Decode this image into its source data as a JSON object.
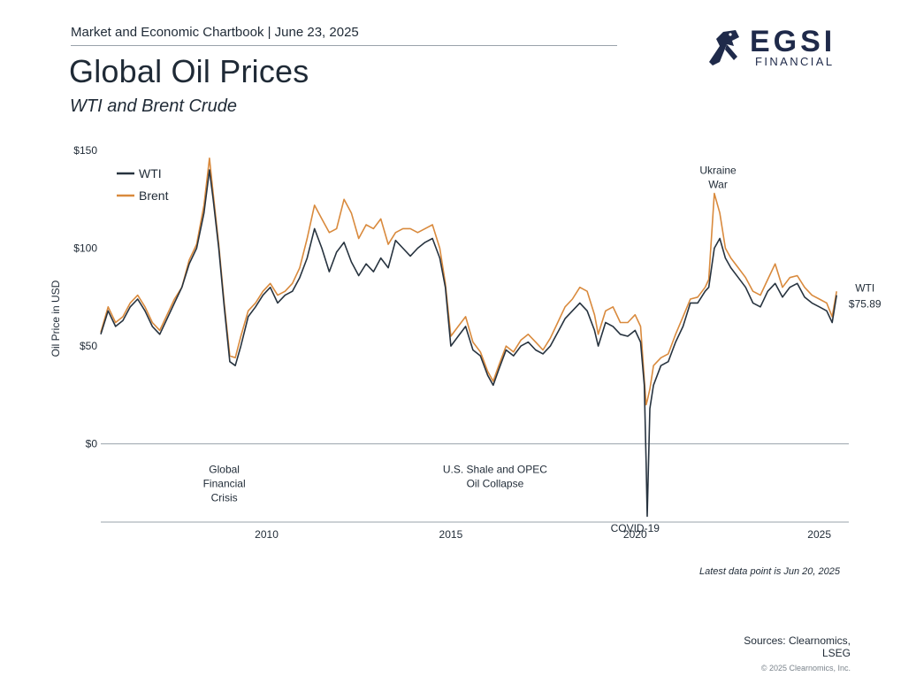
{
  "header": {
    "top_line": "Market and Economic Chartbook | June 23, 2025",
    "title": "Global Oil Prices",
    "subtitle": "WTI and Brent Crude"
  },
  "logo": {
    "main": "EGSI",
    "sub": "FINANCIAL"
  },
  "colors": {
    "wti": "#27333f",
    "brent": "#d98a3d",
    "axis": "#9aa3ab",
    "text": "#1f2a36"
  },
  "chart_data": {
    "type": "line",
    "ylabel": "Oil Price in USD",
    "ylim": [
      -40,
      150
    ],
    "yticks": [
      {
        "value": 150,
        "label": "$150"
      },
      {
        "value": 100,
        "label": "$100"
      },
      {
        "value": 50,
        "label": "$50"
      },
      {
        "value": 0,
        "label": "$0"
      }
    ],
    "xlim": [
      2005.5,
      2025.8
    ],
    "xticks": [
      {
        "value": 2010,
        "label": "2010"
      },
      {
        "value": 2015,
        "label": "2015"
      },
      {
        "value": 2020,
        "label": "2020"
      },
      {
        "value": 2025,
        "label": "2025"
      }
    ],
    "legend": [
      "WTI",
      "Brent"
    ],
    "legend_position": "top-left",
    "series": [
      {
        "name": "WTI",
        "color": "#27333f",
        "x": [
          2005.5,
          2005.7,
          2005.9,
          2006.1,
          2006.3,
          2006.5,
          2006.7,
          2006.9,
          2007.1,
          2007.3,
          2007.5,
          2007.7,
          2007.9,
          2008.1,
          2008.3,
          2008.45,
          2008.55,
          2008.7,
          2008.85,
          2009.0,
          2009.15,
          2009.3,
          2009.5,
          2009.7,
          2009.9,
          2010.1,
          2010.3,
          2010.5,
          2010.7,
          2010.9,
          2011.1,
          2011.3,
          2011.5,
          2011.7,
          2011.9,
          2012.1,
          2012.3,
          2012.5,
          2012.7,
          2012.9,
          2013.1,
          2013.3,
          2013.5,
          2013.7,
          2013.9,
          2014.1,
          2014.3,
          2014.5,
          2014.7,
          2014.85,
          2015.0,
          2015.2,
          2015.4,
          2015.6,
          2015.8,
          2016.0,
          2016.15,
          2016.3,
          2016.5,
          2016.7,
          2016.9,
          2017.1,
          2017.3,
          2017.5,
          2017.7,
          2017.9,
          2018.1,
          2018.3,
          2018.5,
          2018.7,
          2018.9,
          2019.0,
          2019.2,
          2019.4,
          2019.6,
          2019.8,
          2020.0,
          2020.15,
          2020.25,
          2020.3,
          2020.33,
          2020.4,
          2020.5,
          2020.7,
          2020.9,
          2021.1,
          2021.3,
          2021.5,
          2021.7,
          2021.9,
          2022.0,
          2022.15,
          2022.3,
          2022.45,
          2022.6,
          2022.8,
          2023.0,
          2023.2,
          2023.4,
          2023.6,
          2023.8,
          2024.0,
          2024.2,
          2024.4,
          2024.6,
          2024.8,
          2025.0,
          2025.2,
          2025.35,
          2025.47
        ],
        "values": [
          56,
          68,
          60,
          63,
          70,
          74,
          68,
          60,
          56,
          64,
          72,
          80,
          92,
          100,
          118,
          140,
          125,
          100,
          70,
          42,
          40,
          50,
          65,
          70,
          76,
          80,
          72,
          76,
          78,
          85,
          95,
          110,
          100,
          88,
          98,
          103,
          93,
          86,
          92,
          88,
          95,
          90,
          104,
          100,
          96,
          100,
          103,
          105,
          95,
          80,
          50,
          55,
          60,
          48,
          45,
          35,
          30,
          38,
          48,
          45,
          50,
          52,
          48,
          46,
          50,
          57,
          64,
          68,
          72,
          68,
          58,
          50,
          62,
          60,
          56,
          55,
          58,
          52,
          30,
          -10,
          -37,
          18,
          30,
          40,
          42,
          52,
          60,
          72,
          72,
          78,
          80,
          100,
          105,
          95,
          90,
          85,
          80,
          72,
          70,
          78,
          82,
          75,
          80,
          82,
          75,
          72,
          70,
          68,
          62,
          76
        ]
      },
      {
        "name": "Brent",
        "color": "#d98a3d",
        "x": [
          2005.5,
          2005.7,
          2005.9,
          2006.1,
          2006.3,
          2006.5,
          2006.7,
          2006.9,
          2007.1,
          2007.3,
          2007.5,
          2007.7,
          2007.9,
          2008.1,
          2008.3,
          2008.45,
          2008.55,
          2008.7,
          2008.85,
          2009.0,
          2009.15,
          2009.3,
          2009.5,
          2009.7,
          2009.9,
          2010.1,
          2010.3,
          2010.5,
          2010.7,
          2010.9,
          2011.1,
          2011.3,
          2011.5,
          2011.7,
          2011.9,
          2012.1,
          2012.3,
          2012.5,
          2012.7,
          2012.9,
          2013.1,
          2013.3,
          2013.5,
          2013.7,
          2013.9,
          2014.1,
          2014.3,
          2014.5,
          2014.7,
          2014.85,
          2015.0,
          2015.2,
          2015.4,
          2015.6,
          2015.8,
          2016.0,
          2016.15,
          2016.3,
          2016.5,
          2016.7,
          2016.9,
          2017.1,
          2017.3,
          2017.5,
          2017.7,
          2017.9,
          2018.1,
          2018.3,
          2018.5,
          2018.7,
          2018.9,
          2019.0,
          2019.2,
          2019.4,
          2019.6,
          2019.8,
          2020.0,
          2020.15,
          2020.25,
          2020.3,
          2020.33,
          2020.4,
          2020.5,
          2020.7,
          2020.9,
          2021.1,
          2021.3,
          2021.5,
          2021.7,
          2021.9,
          2022.0,
          2022.15,
          2022.3,
          2022.45,
          2022.6,
          2022.8,
          2023.0,
          2023.2,
          2023.4,
          2023.6,
          2023.8,
          2024.0,
          2024.2,
          2024.4,
          2024.6,
          2024.8,
          2025.0,
          2025.2,
          2025.35,
          2025.47
        ],
        "values": [
          57,
          70,
          62,
          65,
          72,
          76,
          70,
          62,
          58,
          66,
          74,
          80,
          94,
          102,
          122,
          146,
          128,
          102,
          72,
          45,
          44,
          55,
          68,
          72,
          78,
          82,
          76,
          78,
          82,
          90,
          105,
          122,
          115,
          108,
          110,
          125,
          118,
          105,
          112,
          110,
          115,
          102,
          108,
          110,
          110,
          108,
          110,
          112,
          100,
          82,
          55,
          60,
          65,
          52,
          47,
          37,
          32,
          40,
          50,
          47,
          53,
          56,
          52,
          48,
          54,
          62,
          70,
          74,
          80,
          78,
          66,
          56,
          68,
          70,
          62,
          62,
          66,
          60,
          33,
          20,
          22,
          28,
          40,
          44,
          46,
          56,
          65,
          74,
          75,
          80,
          84,
          128,
          118,
          100,
          95,
          90,
          85,
          78,
          76,
          84,
          92,
          80,
          85,
          86,
          80,
          76,
          74,
          72,
          65,
          78
        ]
      }
    ],
    "annotations": [
      {
        "x": 2008.85,
        "y": -15,
        "lines": [
          "Global",
          "Financial",
          "Crisis"
        ]
      },
      {
        "x": 2016.2,
        "y": -15,
        "lines": [
          "U.S. Shale and OPEC",
          "Oil Collapse"
        ]
      },
      {
        "x": 2020.0,
        "y": -45,
        "lines": [
          "COVID-19"
        ]
      },
      {
        "x": 2022.25,
        "y": 138,
        "lines": [
          "Ukraine",
          "War"
        ]
      }
    ],
    "end_label": {
      "x": 2025.47,
      "y": 76,
      "lines": [
        "WTI",
        "$75.89"
      ]
    }
  },
  "footer": {
    "note": "Latest data point is Jun 20, 2025",
    "sources_line1": "Sources: Clearnomics,",
    "sources_line2": "LSEG",
    "copyright": "© 2025 Clearnomics, Inc."
  }
}
